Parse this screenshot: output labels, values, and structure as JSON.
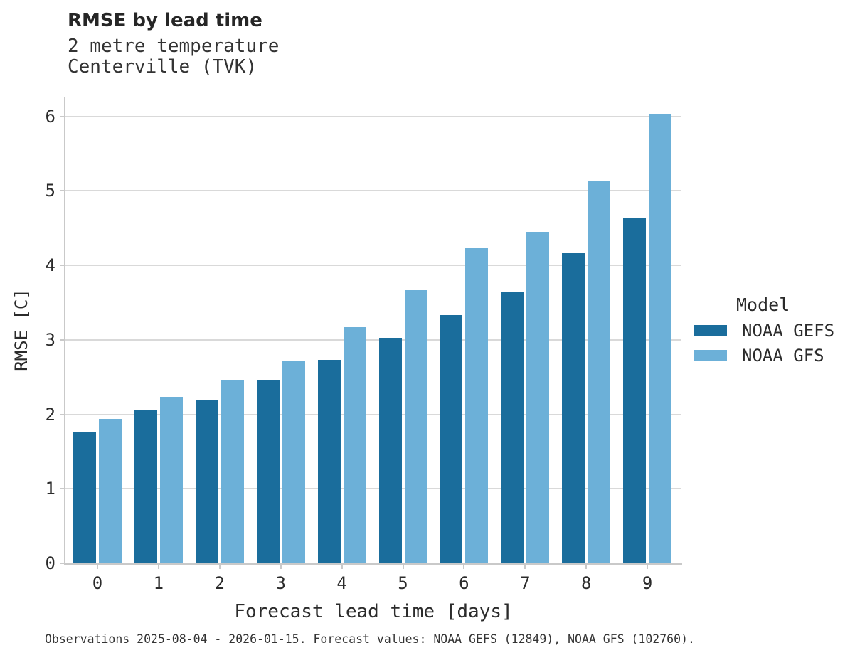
{
  "title": "RMSE by lead time",
  "subtitle_lines": [
    "2 metre temperature",
    "Centerville (TVK)"
  ],
  "caption": "Observations 2025-08-04 - 2026-01-15. Forecast values: NOAA GEFS (12849), NOAA GFS (102760).",
  "legend": {
    "title": "Model",
    "entries": [
      {
        "label": "NOAA GEFS",
        "color": "#1a6d9c"
      },
      {
        "label": "NOAA GFS",
        "color": "#6cb0d8"
      }
    ]
  },
  "colors": {
    "gefs_bar": "#1a6d9c",
    "gfs_bar": "#6cb0d8",
    "gridline": "#d9d9d9",
    "spine": "#c9c9c9"
  },
  "chart_data": {
    "type": "bar",
    "title": "RMSE by lead time",
    "subtitle": "2 metre temperature, Centerville (TVK)",
    "xlabel": "Forecast lead time [days]",
    "ylabel": "RMSE [C]",
    "categories": [
      "0",
      "1",
      "2",
      "3",
      "4",
      "5",
      "6",
      "7",
      "8",
      "9"
    ],
    "series": [
      {
        "name": "NOAA GEFS",
        "color": "#1a6d9c",
        "values": [
          1.77,
          2.06,
          2.2,
          2.46,
          2.73,
          3.03,
          3.33,
          3.65,
          4.16,
          4.64
        ]
      },
      {
        "name": "NOAA GFS",
        "color": "#6cb0d8",
        "values": [
          1.94,
          2.23,
          2.46,
          2.72,
          3.17,
          3.67,
          4.23,
          4.45,
          5.14,
          6.03
        ]
      }
    ],
    "ylim": [
      0,
      6.26
    ],
    "yticks": [
      0,
      1,
      2,
      3,
      4,
      5,
      6
    ],
    "grid": true,
    "legend_position": "right",
    "legend_title": "Model"
  }
}
